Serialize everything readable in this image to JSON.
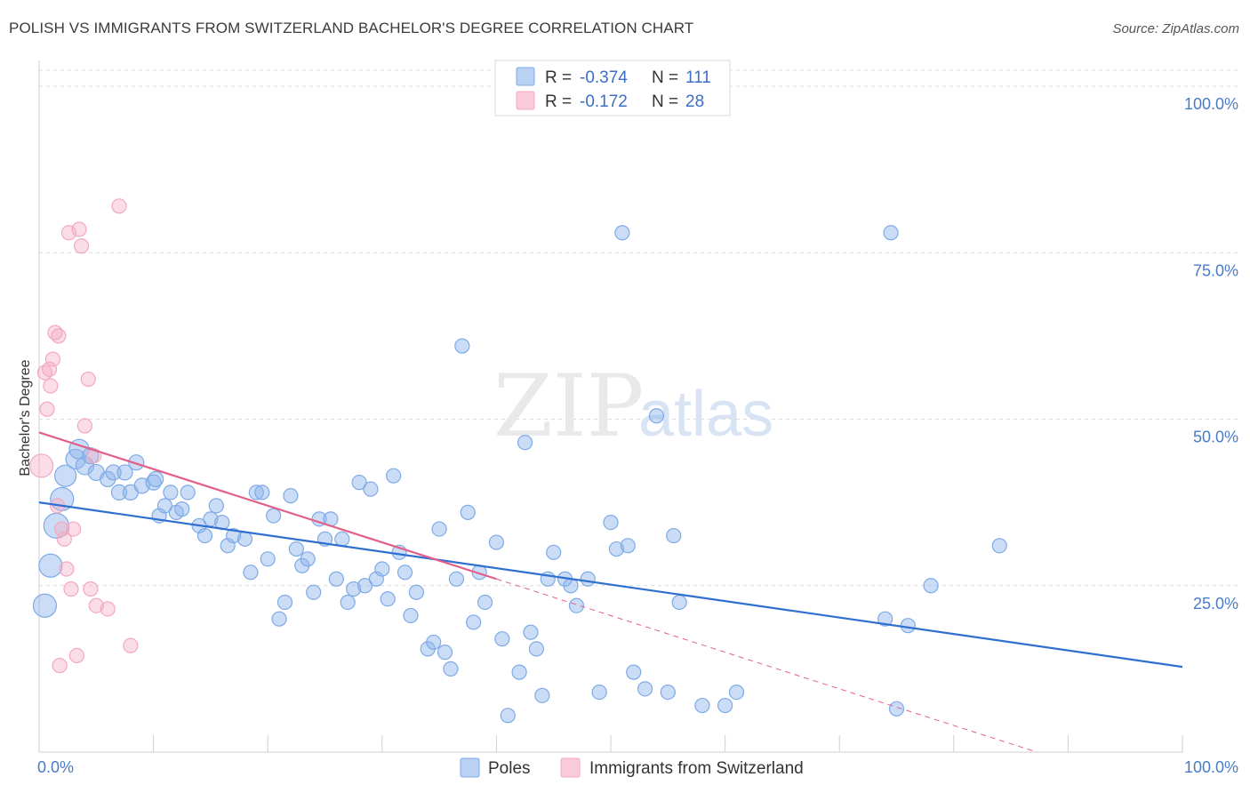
{
  "title": "POLISH VS IMMIGRANTS FROM SWITZERLAND BACHELOR'S DEGREE CORRELATION CHART",
  "source": "Source: ZipAtlas.com",
  "watermark": {
    "zip": "ZIP",
    "atlas": "atlas"
  },
  "chart_data": {
    "type": "scatter",
    "ylabel": "Bachelor's Degree",
    "xlim": [
      0,
      100
    ],
    "ylim": [
      0,
      100
    ],
    "x_tick_labels": [
      "0.0%",
      "100.0%"
    ],
    "y_ticks": [
      25,
      50,
      75,
      100
    ],
    "y_tick_labels": [
      "25.0%",
      "50.0%",
      "75.0%",
      "100.0%"
    ],
    "grid": "horizontal dashed",
    "legend_placement": "top-center",
    "stats": [
      {
        "r_label": "R = ",
        "r_value": "-0.374",
        "n_label": "N = ",
        "n_value": "111"
      },
      {
        "r_label": "R = ",
        "r_value": "-0.172",
        "n_label": "N = ",
        "n_value": "28"
      }
    ],
    "series": [
      {
        "name": "Poles",
        "color": "#7eaae6",
        "line_color": "#2f6fd0",
        "trend": {
          "x0": 0,
          "y0": 37.5,
          "x1": 100,
          "y1": 12.8
        },
        "points": [
          [
            0.5,
            22,
            22
          ],
          [
            1,
            28,
            22
          ],
          [
            1.5,
            34,
            24
          ],
          [
            2,
            38,
            22
          ],
          [
            2.3,
            41.5,
            20
          ],
          [
            3.2,
            44,
            18
          ],
          [
            3.5,
            45.5,
            18
          ],
          [
            4,
            43,
            16
          ],
          [
            4.5,
            44.5,
            14
          ],
          [
            5,
            42,
            14
          ],
          [
            6,
            41,
            13
          ],
          [
            6.5,
            42,
            13
          ],
          [
            7,
            39,
            13
          ],
          [
            7.5,
            42,
            13
          ],
          [
            8,
            39,
            13
          ],
          [
            8.5,
            43.5,
            13
          ],
          [
            9,
            40,
            13
          ],
          [
            10,
            40.5,
            13
          ],
          [
            10.2,
            41,
            13
          ],
          [
            10.5,
            35.5,
            12
          ],
          [
            11,
            37,
            12
          ],
          [
            11.5,
            39,
            12
          ],
          [
            12,
            36,
            12
          ],
          [
            12.5,
            36.5,
            12
          ],
          [
            13,
            39,
            12
          ],
          [
            14,
            34,
            12
          ],
          [
            14.5,
            32.5,
            12
          ],
          [
            15,
            35,
            12
          ],
          [
            15.5,
            37,
            12
          ],
          [
            16,
            34.5,
            12
          ],
          [
            16.5,
            31,
            12
          ],
          [
            17,
            32.5,
            12
          ],
          [
            18,
            32,
            12
          ],
          [
            18.5,
            27,
            12
          ],
          [
            19,
            39,
            12
          ],
          [
            19.5,
            39,
            12
          ],
          [
            20,
            29,
            12
          ],
          [
            20.5,
            35.5,
            12
          ],
          [
            21,
            20,
            12
          ],
          [
            21.5,
            22.5,
            12
          ],
          [
            22,
            38.5,
            12
          ],
          [
            22.5,
            30.5,
            12
          ],
          [
            23,
            28,
            12
          ],
          [
            23.5,
            29,
            12
          ],
          [
            24,
            24,
            12
          ],
          [
            24.5,
            35,
            12
          ],
          [
            25,
            32,
            12
          ],
          [
            25.5,
            35,
            12
          ],
          [
            26,
            26,
            12
          ],
          [
            26.5,
            32,
            12
          ],
          [
            27,
            22.5,
            12
          ],
          [
            27.5,
            24.5,
            12
          ],
          [
            28,
            40.5,
            12
          ],
          [
            28.5,
            25,
            12
          ],
          [
            29,
            39.5,
            12
          ],
          [
            29.5,
            26,
            12
          ],
          [
            30,
            27.5,
            12
          ],
          [
            30.5,
            23,
            12
          ],
          [
            31,
            41.5,
            12
          ],
          [
            31.5,
            30,
            12
          ],
          [
            32,
            27,
            12
          ],
          [
            32.5,
            20.5,
            12
          ],
          [
            33,
            24,
            12
          ],
          [
            34,
            15.5,
            12
          ],
          [
            34.5,
            16.5,
            12
          ],
          [
            35,
            33.5,
            12
          ],
          [
            35.5,
            15,
            12
          ],
          [
            36,
            12.5,
            12
          ],
          [
            36.5,
            26,
            12
          ],
          [
            37,
            61,
            12
          ],
          [
            37.5,
            36,
            12
          ],
          [
            38,
            19.5,
            12
          ],
          [
            38.5,
            27,
            12
          ],
          [
            39,
            22.5,
            12
          ],
          [
            40,
            31.5,
            12
          ],
          [
            40.5,
            17,
            12
          ],
          [
            41,
            5.5,
            12
          ],
          [
            42,
            12,
            12
          ],
          [
            42.5,
            46.5,
            12
          ],
          [
            43,
            18,
            12
          ],
          [
            43.5,
            15.5,
            12
          ],
          [
            44,
            8.5,
            12
          ],
          [
            44.5,
            26,
            12
          ],
          [
            45,
            30,
            12
          ],
          [
            46,
            26,
            12
          ],
          [
            46.5,
            25,
            12
          ],
          [
            47,
            22,
            12
          ],
          [
            48,
            26,
            12
          ],
          [
            49,
            9,
            12
          ],
          [
            50,
            34.5,
            12
          ],
          [
            50.5,
            30.5,
            12
          ],
          [
            51,
            78,
            12
          ],
          [
            51.5,
            31,
            12
          ],
          [
            52,
            12,
            12
          ],
          [
            53,
            9.5,
            12
          ],
          [
            54,
            50.5,
            12
          ],
          [
            55,
            9,
            12
          ],
          [
            55.5,
            32.5,
            12
          ],
          [
            56,
            22.5,
            12
          ],
          [
            58,
            7,
            12
          ],
          [
            60,
            7,
            12
          ],
          [
            61,
            9,
            12
          ],
          [
            74,
            20,
            12
          ],
          [
            74.5,
            78,
            12
          ],
          [
            75,
            6.5,
            12
          ],
          [
            76,
            19,
            12
          ],
          [
            78,
            25,
            12
          ],
          [
            84,
            31,
            12
          ]
        ]
      },
      {
        "name": "Immigrants from Switzerland",
        "color": "#f3a8c0",
        "line_color": "#e0608a",
        "trend": {
          "x0": 0,
          "y0": 48,
          "x1": 40,
          "y1": 26
        },
        "trend_dashed": {
          "x0": 40,
          "y0": 26,
          "x1": 100,
          "y1": -7
        },
        "points": [
          [
            0.2,
            43,
            22
          ],
          [
            0.5,
            57,
            12
          ],
          [
            0.7,
            51.5,
            12
          ],
          [
            0.9,
            57.5,
            12
          ],
          [
            1,
            55,
            12
          ],
          [
            1.2,
            59,
            12
          ],
          [
            1.4,
            63,
            12
          ],
          [
            1.6,
            37,
            12
          ],
          [
            1.7,
            62.5,
            12
          ],
          [
            1.8,
            13,
            12
          ],
          [
            2,
            33.5,
            12
          ],
          [
            2.2,
            32,
            12
          ],
          [
            2.4,
            27.5,
            12
          ],
          [
            2.6,
            78,
            12
          ],
          [
            2.8,
            24.5,
            12
          ],
          [
            3,
            33.5,
            12
          ],
          [
            3.3,
            14.5,
            12
          ],
          [
            3.5,
            78.5,
            12
          ],
          [
            3.7,
            76,
            12
          ],
          [
            4,
            49,
            12
          ],
          [
            4.3,
            56,
            12
          ],
          [
            4.5,
            24.5,
            12
          ],
          [
            4.8,
            44.5,
            12
          ],
          [
            5,
            22,
            12
          ],
          [
            6,
            21.5,
            12
          ],
          [
            7,
            82,
            12
          ],
          [
            8,
            16,
            12
          ]
        ]
      }
    ]
  }
}
